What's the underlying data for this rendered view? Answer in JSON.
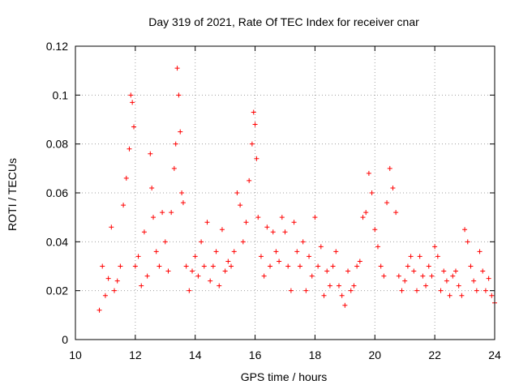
{
  "chart_data": {
    "type": "scatter",
    "title": "Day 319 of 2021, Rate Of TEC Index for receiver cnar",
    "xlabel": "GPS time / hours",
    "ylabel": "ROTI / TECUs",
    "xlim": [
      10,
      24
    ],
    "ylim": [
      0,
      0.12
    ],
    "xticks": [
      10,
      12,
      14,
      16,
      18,
      20,
      22,
      24
    ],
    "yticks": [
      0,
      0.02,
      0.04,
      0.06,
      0.08,
      0.1,
      0.12
    ],
    "xtick_labels": [
      "10",
      "12",
      "14",
      "16",
      "18",
      "20",
      "22",
      "24"
    ],
    "ytick_labels": [
      "0",
      "0.02",
      "0.04",
      "0.06",
      "0.08",
      "0.1",
      "0.12"
    ],
    "grid": true,
    "marker": "+",
    "series": [
      {
        "name": "ROTI",
        "color": "#ff0000",
        "x": [
          10.8,
          10.9,
          11.0,
          11.1,
          11.2,
          11.3,
          11.4,
          11.5,
          11.6,
          11.7,
          11.8,
          11.85,
          11.9,
          11.95,
          12.0,
          12.1,
          12.2,
          12.3,
          12.4,
          12.5,
          12.55,
          12.6,
          12.7,
          12.8,
          12.9,
          13.0,
          13.1,
          13.2,
          13.3,
          13.35,
          13.4,
          13.45,
          13.5,
          13.55,
          13.6,
          13.7,
          13.8,
          13.9,
          14.0,
          14.1,
          14.2,
          14.3,
          14.4,
          14.5,
          14.6,
          14.7,
          14.8,
          14.9,
          15.0,
          15.1,
          15.2,
          15.3,
          15.4,
          15.5,
          15.6,
          15.7,
          15.8,
          15.9,
          15.95,
          16.0,
          16.05,
          16.1,
          16.2,
          16.3,
          16.4,
          16.5,
          16.6,
          16.7,
          16.8,
          16.9,
          17.0,
          17.1,
          17.2,
          17.3,
          17.4,
          17.5,
          17.6,
          17.7,
          17.8,
          17.9,
          18.0,
          18.1,
          18.2,
          18.3,
          18.4,
          18.5,
          18.6,
          18.7,
          18.8,
          18.9,
          19.0,
          19.1,
          19.2,
          19.3,
          19.4,
          19.5,
          19.6,
          19.7,
          19.8,
          19.9,
          20.0,
          20.1,
          20.2,
          20.3,
          20.4,
          20.5,
          20.6,
          20.7,
          20.8,
          20.9,
          21.0,
          21.1,
          21.2,
          21.3,
          21.4,
          21.5,
          21.6,
          21.7,
          21.8,
          21.9,
          22.0,
          22.1,
          22.2,
          22.3,
          22.4,
          22.5,
          22.6,
          22.7,
          22.8,
          22.9,
          23.0,
          23.1,
          23.2,
          23.3,
          23.4,
          23.5,
          23.6,
          23.7,
          23.8,
          23.9,
          24.0
        ],
        "y": [
          0.012,
          0.03,
          0.018,
          0.025,
          0.046,
          0.02,
          0.024,
          0.03,
          0.055,
          0.066,
          0.078,
          0.1,
          0.097,
          0.087,
          0.03,
          0.034,
          0.022,
          0.044,
          0.026,
          0.076,
          0.062,
          0.05,
          0.036,
          0.03,
          0.052,
          0.04,
          0.028,
          0.052,
          0.07,
          0.08,
          0.111,
          0.1,
          0.085,
          0.06,
          0.056,
          0.03,
          0.02,
          0.028,
          0.034,
          0.026,
          0.04,
          0.03,
          0.048,
          0.024,
          0.03,
          0.036,
          0.022,
          0.045,
          0.028,
          0.032,
          0.03,
          0.036,
          0.06,
          0.055,
          0.04,
          0.048,
          0.065,
          0.08,
          0.093,
          0.088,
          0.074,
          0.05,
          0.034,
          0.026,
          0.046,
          0.03,
          0.044,
          0.036,
          0.032,
          0.05,
          0.044,
          0.03,
          0.02,
          0.048,
          0.036,
          0.03,
          0.04,
          0.02,
          0.034,
          0.026,
          0.05,
          0.03,
          0.038,
          0.018,
          0.028,
          0.022,
          0.03,
          0.036,
          0.022,
          0.018,
          0.014,
          0.028,
          0.02,
          0.022,
          0.03,
          0.032,
          0.05,
          0.052,
          0.068,
          0.06,
          0.045,
          0.038,
          0.03,
          0.026,
          0.056,
          0.07,
          0.062,
          0.052,
          0.026,
          0.02,
          0.024,
          0.03,
          0.034,
          0.028,
          0.02,
          0.034,
          0.026,
          0.022,
          0.03,
          0.026,
          0.038,
          0.034,
          0.02,
          0.028,
          0.024,
          0.018,
          0.026,
          0.028,
          0.022,
          0.018,
          0.045,
          0.04,
          0.03,
          0.024,
          0.02,
          0.036,
          0.028,
          0.02,
          0.025,
          0.018,
          0.015
        ]
      }
    ]
  }
}
